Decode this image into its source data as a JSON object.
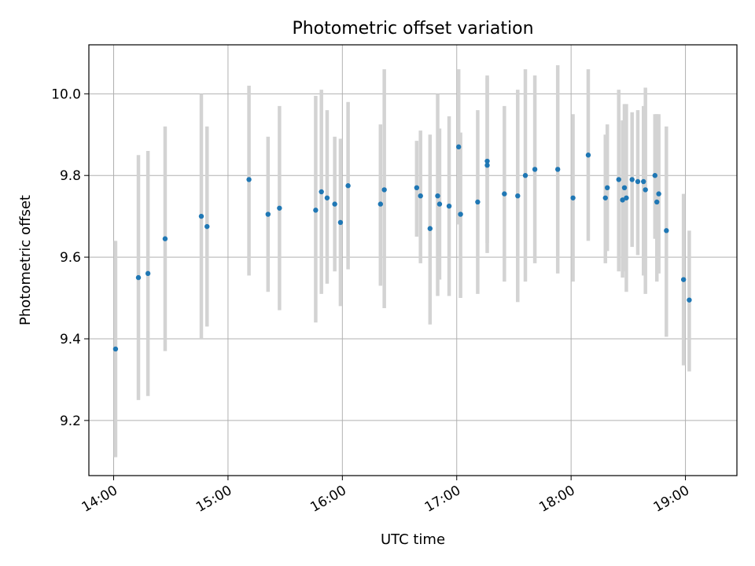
{
  "chart_data": {
    "type": "scatter",
    "title": "Photometric offset variation",
    "xlabel": "UTC time",
    "ylabel": "Photometric offset",
    "x_axis_kind": "time",
    "xlim": [
      "13:47",
      "19:27"
    ],
    "ylim": [
      9.065,
      10.12
    ],
    "grid": true,
    "x_ticks": [
      "14:00",
      "15:00",
      "16:00",
      "17:00",
      "18:00",
      "19:00"
    ],
    "y_ticks": [
      "9.2",
      "9.4",
      "9.6",
      "9.8",
      "10.0"
    ],
    "colors": {
      "point": "#1f77b4",
      "errorbar": "#d3d3d3",
      "grid": "#b0b0b0"
    },
    "points": [
      {
        "x": "14:01",
        "y": 9.375,
        "low": 9.11,
        "high": 9.64
      },
      {
        "x": "14:13",
        "y": 9.55,
        "low": 9.25,
        "high": 9.85
      },
      {
        "x": "14:18",
        "y": 9.56,
        "low": 9.26,
        "high": 9.86
      },
      {
        "x": "14:27",
        "y": 9.645,
        "low": 9.37,
        "high": 9.92
      },
      {
        "x": "14:46",
        "y": 9.7,
        "low": 9.4,
        "high": 10.0
      },
      {
        "x": "14:49",
        "y": 9.675,
        "low": 9.43,
        "high": 9.92
      },
      {
        "x": "15:11",
        "y": 9.79,
        "low": 9.555,
        "high": 10.02
      },
      {
        "x": "15:21",
        "y": 9.705,
        "low": 9.515,
        "high": 9.895
      },
      {
        "x": "15:27",
        "y": 9.72,
        "low": 9.47,
        "high": 9.97
      },
      {
        "x": "15:46",
        "y": 9.715,
        "low": 9.44,
        "high": 9.995
      },
      {
        "x": "15:49",
        "y": 9.76,
        "low": 9.51,
        "high": 10.01
      },
      {
        "x": "15:52",
        "y": 9.745,
        "low": 9.535,
        "high": 9.96
      },
      {
        "x": "15:56",
        "y": 9.73,
        "low": 9.565,
        "high": 9.895
      },
      {
        "x": "15:59",
        "y": 9.685,
        "low": 9.48,
        "high": 9.89
      },
      {
        "x": "16:03",
        "y": 9.775,
        "low": 9.57,
        "high": 9.98
      },
      {
        "x": "16:20",
        "y": 9.73,
        "low": 9.53,
        "high": 9.925
      },
      {
        "x": "16:22",
        "y": 9.765,
        "low": 9.475,
        "high": 10.06
      },
      {
        "x": "16:39",
        "y": 9.77,
        "low": 9.65,
        "high": 9.885
      },
      {
        "x": "16:41",
        "y": 9.75,
        "low": 9.585,
        "high": 9.91
      },
      {
        "x": "16:46",
        "y": 9.67,
        "low": 9.435,
        "high": 9.9
      },
      {
        "x": "16:50",
        "y": 9.75,
        "low": 9.505,
        "high": 10.0
      },
      {
        "x": "16:51",
        "y": 9.73,
        "low": 9.545,
        "high": 9.915
      },
      {
        "x": "16:56",
        "y": 9.725,
        "low": 9.505,
        "high": 9.945
      },
      {
        "x": "17:01",
        "y": 9.87,
        "low": 9.68,
        "high": 10.06
      },
      {
        "x": "17:02",
        "y": 9.705,
        "low": 9.5,
        "high": 9.905
      },
      {
        "x": "17:11",
        "y": 9.735,
        "low": 9.51,
        "high": 9.96
      },
      {
        "x": "17:16",
        "y": 9.835,
        "low": 9.635,
        "high": 10.04
      },
      {
        "x": "17:16",
        "y": 9.825,
        "low": 9.61,
        "high": 10.045
      },
      {
        "x": "17:25",
        "y": 9.755,
        "low": 9.54,
        "high": 9.97
      },
      {
        "x": "17:32",
        "y": 9.75,
        "low": 9.49,
        "high": 10.01
      },
      {
        "x": "17:36",
        "y": 9.8,
        "low": 9.54,
        "high": 10.06
      },
      {
        "x": "17:41",
        "y": 9.815,
        "low": 9.585,
        "high": 10.045
      },
      {
        "x": "17:53",
        "y": 9.815,
        "low": 9.56,
        "high": 10.07
      },
      {
        "x": "18:01",
        "y": 9.745,
        "low": 9.54,
        "high": 9.95
      },
      {
        "x": "18:09",
        "y": 9.85,
        "low": 9.64,
        "high": 10.06
      },
      {
        "x": "18:18",
        "y": 9.745,
        "low": 9.585,
        "high": 9.9
      },
      {
        "x": "18:19",
        "y": 9.77,
        "low": 9.615,
        "high": 9.925
      },
      {
        "x": "18:25",
        "y": 9.79,
        "low": 9.565,
        "high": 10.01
      },
      {
        "x": "18:27",
        "y": 9.74,
        "low": 9.55,
        "high": 9.935
      },
      {
        "x": "18:28",
        "y": 9.77,
        "low": 9.565,
        "high": 9.975
      },
      {
        "x": "18:29",
        "y": 9.745,
        "low": 9.515,
        "high": 9.975
      },
      {
        "x": "18:32",
        "y": 9.79,
        "low": 9.625,
        "high": 9.955
      },
      {
        "x": "18:35",
        "y": 9.785,
        "low": 9.605,
        "high": 9.96
      },
      {
        "x": "18:38",
        "y": 9.785,
        "low": 9.555,
        "high": 9.97
      },
      {
        "x": "18:39",
        "y": 9.765,
        "low": 9.51,
        "high": 10.015
      },
      {
        "x": "18:44",
        "y": 9.8,
        "low": 9.645,
        "high": 9.95
      },
      {
        "x": "18:45",
        "y": 9.735,
        "low": 9.54,
        "high": 9.95
      },
      {
        "x": "18:46",
        "y": 9.755,
        "low": 9.56,
        "high": 9.95
      },
      {
        "x": "18:50",
        "y": 9.665,
        "low": 9.405,
        "high": 9.92
      },
      {
        "x": "18:59",
        "y": 9.545,
        "low": 9.335,
        "high": 9.755
      },
      {
        "x": "19:02",
        "y": 9.495,
        "low": 9.32,
        "high": 9.665
      }
    ]
  }
}
